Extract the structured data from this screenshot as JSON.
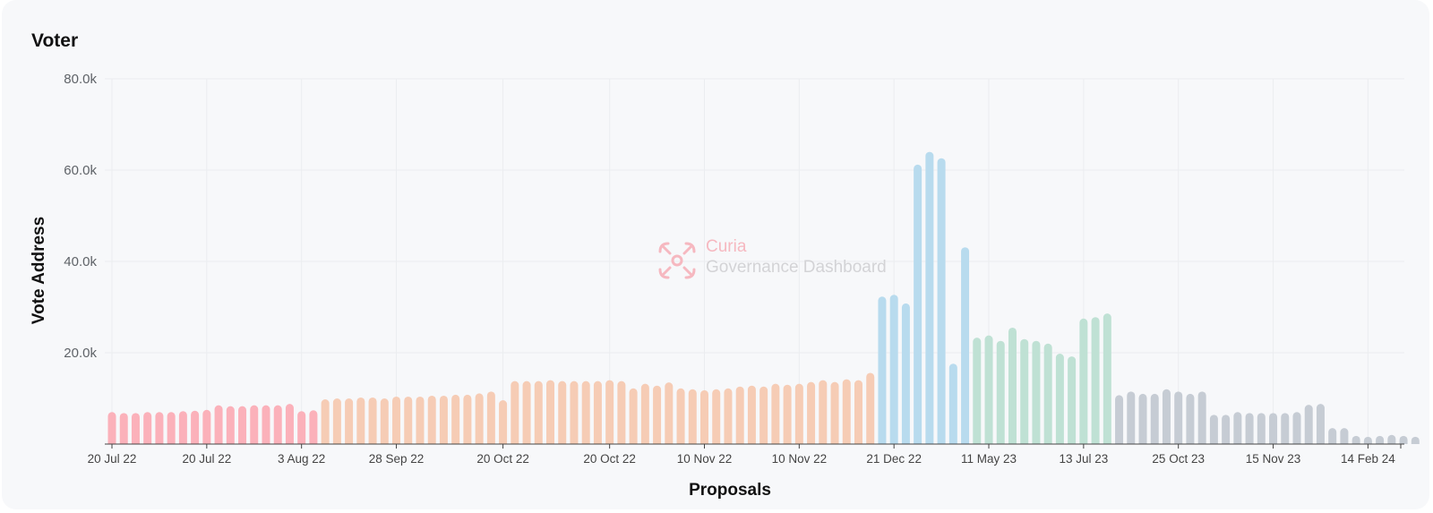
{
  "card": {
    "title": "Voter"
  },
  "watermark": {
    "title": "Curia",
    "subtitle": "Governance Dashboard"
  },
  "chart_data": {
    "type": "bar",
    "xlabel": "Proposals",
    "ylabel": "Vote Address",
    "ylim": [
      0,
      80000
    ],
    "yticks": [
      20000,
      40000,
      60000,
      80000
    ],
    "ytick_labels": [
      "20.0k",
      "40.0k",
      "60.0k",
      "80.0k"
    ],
    "grid": true,
    "xtick_labels": [
      {
        "index": 0,
        "label": "20 Jul 22"
      },
      {
        "index": 8,
        "label": "20 Jul 22"
      },
      {
        "index": 16,
        "label": "3 Aug 22"
      },
      {
        "index": 24,
        "label": "28 Sep 22"
      },
      {
        "index": 33,
        "label": "20 Oct 22"
      },
      {
        "index": 42,
        "label": "20 Oct 22"
      },
      {
        "index": 50,
        "label": "10 Nov 22"
      },
      {
        "index": 58,
        "label": "10 Nov 22"
      },
      {
        "index": 66,
        "label": "21 Dec 22"
      },
      {
        "index": 74,
        "label": "11 May 23"
      },
      {
        "index": 82,
        "label": "13 Jul 23"
      },
      {
        "index": 90,
        "label": "25 Oct 23"
      },
      {
        "index": 98,
        "label": "15 Nov 23"
      },
      {
        "index": 106,
        "label": "14 Feb 24"
      }
    ],
    "series": [
      {
        "color": "#fbb1ba",
        "values": [
          7000,
          6800,
          6800,
          7000,
          7000,
          7000,
          7200,
          7300,
          7500,
          8500,
          8300,
          8300,
          8500,
          8500,
          8500,
          8800,
          7200,
          7400
        ]
      },
      {
        "color": "#f6ccb5",
        "values": [
          9800,
          10000,
          10000,
          10200,
          10200,
          10000,
          10400,
          10400,
          10400,
          10600,
          10600,
          10800,
          10800,
          11100,
          11500,
          9600,
          13800,
          13800,
          13800,
          14000,
          13800,
          13800,
          13800,
          13800,
          14000,
          13800,
          12200,
          13200,
          12800,
          13500,
          12200,
          12000,
          11800,
          12000,
          12200,
          12600,
          12800,
          12600,
          13200,
          13000,
          13200,
          13600,
          14000,
          13600,
          14200,
          14000,
          15600
        ]
      },
      {
        "color": "#b8dbee",
        "values": [
          32300,
          32700,
          30800,
          61200,
          64000,
          62600,
          17600,
          43100
        ]
      },
      {
        "color": "#bfe1d4",
        "values": [
          23300,
          23800,
          22600,
          25500,
          23000,
          22600,
          22000,
          19800,
          19200,
          27500,
          27800,
          28600
        ]
      },
      {
        "color": "#c6ccd4",
        "values": [
          10700,
          11500,
          11000,
          11000,
          12000,
          11500,
          11000,
          11500,
          6400,
          6400,
          7000,
          6800,
          6800,
          6800,
          6800,
          7000,
          8600,
          8800,
          3500,
          3500,
          1800,
          1600,
          1800,
          2000,
          1800,
          1600
        ]
      }
    ]
  }
}
